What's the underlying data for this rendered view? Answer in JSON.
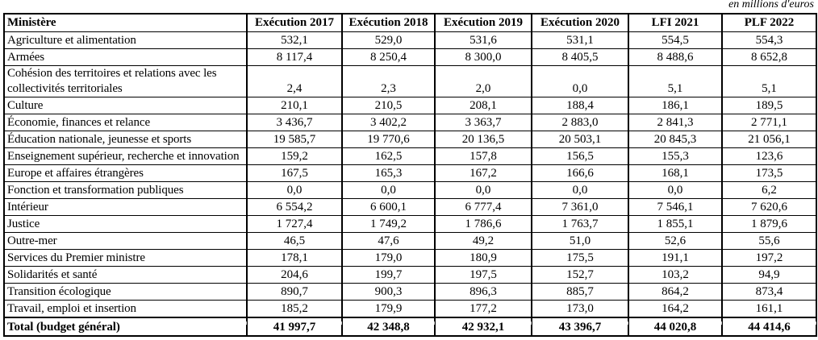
{
  "note": "en millions d'euros",
  "colors": {
    "border": "#000000",
    "text": "#000000",
    "background": "#ffffff",
    "ghost_gridline": "#c9c9c9"
  },
  "table": {
    "columns": [
      "Ministère",
      "Exécution 2017",
      "Exécution 2018",
      "Exécution 2019",
      "Exécution 2020",
      "LFI 2021",
      "PLF 2022"
    ],
    "rows": [
      {
        "label": "Agriculture et alimentation",
        "values": [
          "532,1",
          "529,0",
          "531,6",
          "531,1",
          "554,5",
          "554,3"
        ]
      },
      {
        "label": "Armées",
        "values": [
          "8 117,4",
          "8 250,4",
          "8 300,0",
          "8 405,5",
          "8 488,6",
          "8 652,8"
        ]
      },
      {
        "label": "Cohésion des territoires et relations avec les collectivités territoriales",
        "values": [
          "2,4",
          "2,3",
          "2,0",
          "0,0",
          "5,1",
          "5,1"
        ]
      },
      {
        "label": "Culture",
        "values": [
          "210,1",
          "210,5",
          "208,1",
          "188,4",
          "186,1",
          "189,5"
        ]
      },
      {
        "label": "Économie, finances et relance",
        "values": [
          "3 436,7",
          "3 402,2",
          "3 363,7",
          "2 883,0",
          "2 841,3",
          "2 771,1"
        ]
      },
      {
        "label": "Éducation nationale, jeunesse et sports",
        "values": [
          "19 585,7",
          "19 770,6",
          "20 136,5",
          "20 503,1",
          "20 845,3",
          "21 056,1"
        ]
      },
      {
        "label": "Enseignement supérieur, recherche et innovation",
        "values": [
          "159,2",
          "162,5",
          "157,8",
          "156,5",
          "155,3",
          "123,6"
        ]
      },
      {
        "label": "Europe et affaires étrangères",
        "values": [
          "167,5",
          "165,3",
          "167,2",
          "166,6",
          "168,1",
          "173,5"
        ]
      },
      {
        "label": "Fonction et transformation publiques",
        "values": [
          "0,0",
          "0,0",
          "0,0",
          "0,0",
          "0,0",
          "6,2"
        ]
      },
      {
        "label": "Intérieur",
        "values": [
          "6 554,2",
          "6 600,1",
          "6 777,4",
          "7 361,0",
          "7 546,1",
          "7 620,6"
        ]
      },
      {
        "label": "Justice",
        "values": [
          "1 727,4",
          "1 749,2",
          "1 786,6",
          "1 763,7",
          "1 855,1",
          "1 879,6"
        ]
      },
      {
        "label": "Outre-mer",
        "values": [
          "46,5",
          "47,6",
          "49,2",
          "51,0",
          "52,6",
          "55,6"
        ]
      },
      {
        "label": "Services du Premier ministre",
        "values": [
          "178,1",
          "179,0",
          "180,9",
          "175,5",
          "191,1",
          "197,2"
        ]
      },
      {
        "label": "Solidarités et santé",
        "values": [
          "204,6",
          "199,7",
          "197,5",
          "152,7",
          "103,2",
          "94,9"
        ]
      },
      {
        "label": "Transition écologique",
        "values": [
          "890,7",
          "900,3",
          "896,3",
          "885,7",
          "864,2",
          "873,4"
        ]
      },
      {
        "label": "Travail, emploi et insertion",
        "values": [
          "185,2",
          "179,9",
          "177,2",
          "173,0",
          "164,2",
          "161,1"
        ]
      }
    ],
    "total": {
      "label": "Total (budget général)",
      "values": [
        "41 997,7",
        "42 348,8",
        "42 932,1",
        "43 396,7",
        "44 020,8",
        "44 414,6"
      ]
    }
  }
}
